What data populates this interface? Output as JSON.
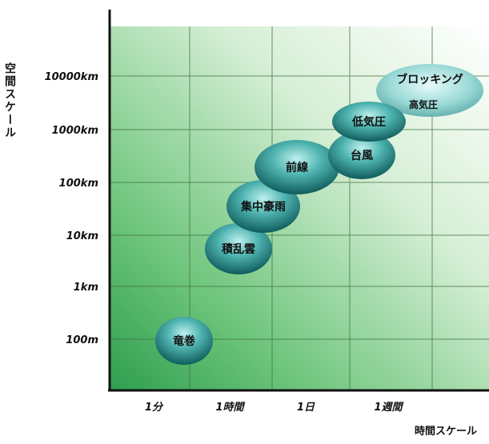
{
  "axes": {
    "y_title": "空間スケール",
    "x_title": "時間スケール",
    "y_ticks": [
      "10000km",
      "1000km",
      "100km",
      "10km",
      "1km",
      "100m"
    ],
    "x_ticks": [
      "1分",
      "1時間",
      "1日",
      "1週間"
    ]
  },
  "phenomena": [
    {
      "label": "竜巻"
    },
    {
      "label": "積乱雲"
    },
    {
      "label": "集中豪雨"
    },
    {
      "label": "前線"
    },
    {
      "label": "台風"
    },
    {
      "label": "低気圧"
    },
    {
      "label": "ブロッキング"
    },
    {
      "label": "高気圧"
    }
  ],
  "colors": {
    "background_light": "#ffffff",
    "background_dark": "#2e9e4f",
    "grid": "#3f6f3f",
    "axis": "#111111",
    "blob_light": "#bff0ee",
    "blob_mid": "#4fb4b0",
    "blob_dark": "#0f5c5c"
  }
}
